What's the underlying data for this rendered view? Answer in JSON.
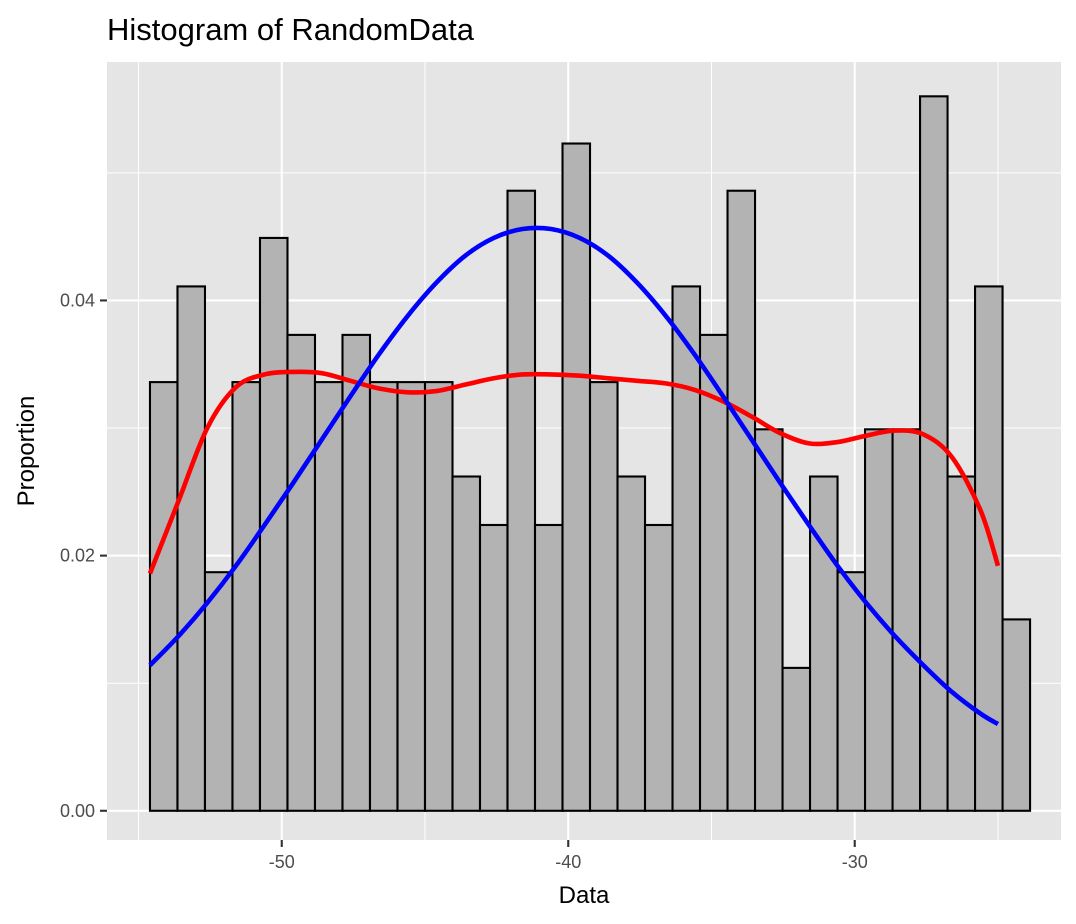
{
  "chart_data": {
    "type": "bar",
    "title": "Histogram of RandomData",
    "xlabel": "Data",
    "ylabel": "Proportion",
    "xlim": [
      -56.1,
      -22.8
    ],
    "ylim": [
      -0.00229,
      0.05869
    ],
    "x_ticks": [
      -50,
      -40,
      -30
    ],
    "x_tick_labels": [
      "-50",
      "-40",
      "-30"
    ],
    "y_ticks": [
      0.0,
      0.02,
      0.04
    ],
    "y_tick_labels": [
      "0.00",
      "0.02",
      "0.04"
    ],
    "grid": true,
    "legend": "none",
    "bins": {
      "width": 0.96,
      "edges": [
        -54.6,
        -53.64,
        -52.68,
        -51.72,
        -50.76,
        -49.8,
        -48.84,
        -47.88,
        -46.92,
        -45.96,
        -45.0,
        -44.04,
        -43.08,
        -42.12,
        -41.16,
        -40.2,
        -39.24,
        -38.28,
        -37.32,
        -36.36,
        -35.4,
        -34.44,
        -33.48,
        -32.52,
        -31.56,
        -30.6,
        -29.64,
        -28.68,
        -27.72,
        -26.76,
        -25.8,
        -24.84
      ],
      "values": [
        0.0336,
        0.0411,
        0.0187,
        0.0336,
        0.0449,
        0.0373,
        0.0336,
        0.0373,
        0.0336,
        0.0336,
        0.0336,
        0.0262,
        0.0224,
        0.0486,
        0.0224,
        0.0523,
        0.0336,
        0.0262,
        0.0224,
        0.0411,
        0.0373,
        0.0486,
        0.0299,
        0.0112,
        0.0262,
        0.0187,
        0.0299,
        0.0299,
        0.056,
        0.0262,
        0.0411,
        0.015
      ]
    },
    "series": [
      {
        "name": "",
        "type": "line",
        "color": "#ff0000",
        "x": [
          -54.6,
          -53.6,
          -52.6,
          -51.6,
          -50.6,
          -49.6,
          -48.6,
          -47.6,
          -46.6,
          -45.6,
          -44.6,
          -43.6,
          -42.6,
          -41.6,
          -40.6,
          -39.6,
          -38.6,
          -37.6,
          -36.6,
          -35.6,
          -34.6,
          -33.6,
          -32.6,
          -31.6,
          -30.6,
          -29.6,
          -28.6,
          -27.6,
          -26.6,
          -25.6,
          -25.0
        ],
        "y": [
          0.0186,
          0.0243,
          0.03,
          0.0332,
          0.0342,
          0.0344,
          0.0343,
          0.0337,
          0.0331,
          0.0328,
          0.0329,
          0.0334,
          0.0339,
          0.0342,
          0.0342,
          0.0341,
          0.0339,
          0.0337,
          0.0335,
          0.033,
          0.0321,
          0.0309,
          0.0296,
          0.0288,
          0.0289,
          0.0294,
          0.0298,
          0.0295,
          0.0277,
          0.0235,
          0.0192
        ]
      },
      {
        "name": "",
        "type": "line",
        "color": "#0000ff",
        "x": [
          -54.6,
          -53.6,
          -52.6,
          -51.6,
          -50.6,
          -49.6,
          -48.6,
          -47.6,
          -46.6,
          -45.6,
          -44.6,
          -43.6,
          -42.6,
          -41.6,
          -40.6,
          -39.6,
          -38.6,
          -37.6,
          -36.6,
          -35.6,
          -34.6,
          -33.6,
          -32.6,
          -31.6,
          -30.6,
          -29.6,
          -28.6,
          -27.6,
          -26.6,
          -25.6,
          -25.0
        ],
        "y": [
          0.0114,
          0.0137,
          0.0163,
          0.0192,
          0.0224,
          0.0257,
          0.0291,
          0.0325,
          0.0358,
          0.0388,
          0.0414,
          0.0435,
          0.0449,
          0.0456,
          0.0456,
          0.0449,
          0.0435,
          0.0414,
          0.0388,
          0.0358,
          0.0325,
          0.0291,
          0.0257,
          0.0224,
          0.0192,
          0.0163,
          0.0137,
          0.0114,
          0.0093,
          0.0076,
          0.0068
        ]
      }
    ],
    "colors": {
      "panel_background": "#e5e5e5",
      "grid_major": "#ffffff",
      "bar_fill": "#b3b3b3",
      "bar_stroke": "#000000",
      "tick_text": "#4d4d4d",
      "axis_tick": "#333333"
    }
  }
}
